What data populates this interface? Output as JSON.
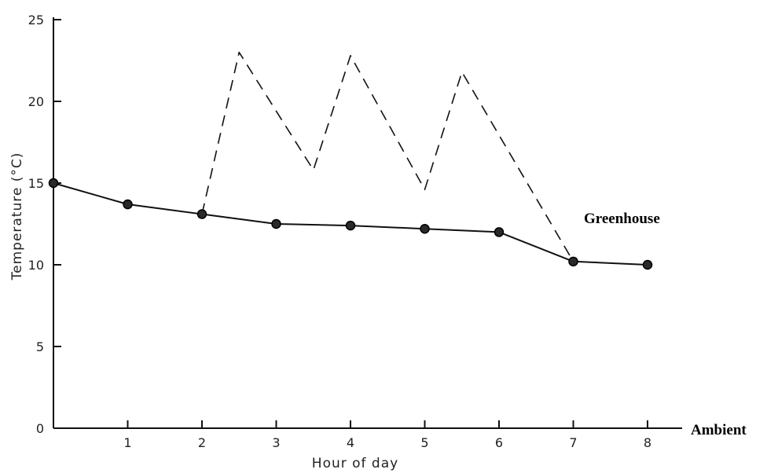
{
  "chart_data": {
    "type": "line",
    "xlabel": "Hour of day",
    "ylabel": "Temperature (°C)",
    "xlim": [
      0,
      8.5
    ],
    "ylim": [
      0,
      25
    ],
    "x_ticks": [
      1,
      2,
      3,
      4,
      5,
      6,
      7,
      8
    ],
    "y_ticks": [
      0,
      5,
      10,
      15,
      20,
      25
    ],
    "grid": false,
    "series": [
      {
        "name": "Ambient",
        "style": "solid-with-markers",
        "color": "#111111",
        "points": [
          [
            0,
            15.0
          ],
          [
            1,
            13.7
          ],
          [
            2,
            13.1
          ],
          [
            3,
            12.5
          ],
          [
            4,
            12.4
          ],
          [
            5,
            12.2
          ],
          [
            6,
            12.0
          ],
          [
            7,
            10.2
          ],
          [
            8,
            10.0
          ]
        ]
      },
      {
        "name": "Greenhouse",
        "style": "dashed",
        "color": "#111111",
        "points": [
          [
            2,
            13.1
          ],
          [
            2.5,
            23.0
          ],
          [
            3.5,
            15.8
          ],
          [
            4,
            22.8
          ],
          [
            5,
            14.6
          ],
          [
            5.5,
            21.8
          ],
          [
            7,
            10.2
          ]
        ]
      }
    ]
  }
}
